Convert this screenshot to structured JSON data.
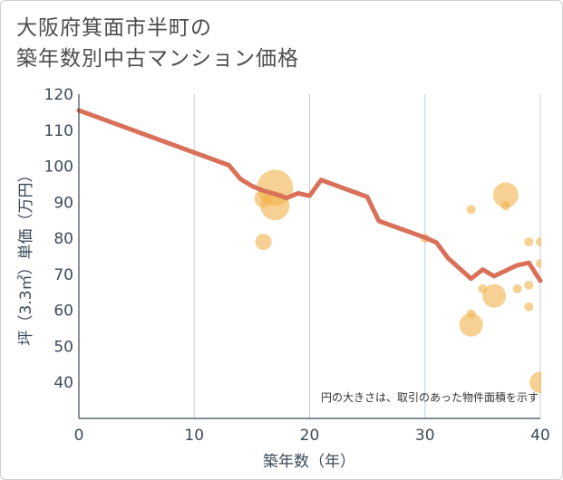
{
  "title_lines": [
    "大阪府箕面市半町の",
    "築年数別中古マンション価格"
  ],
  "chart_data": {
    "type": "scatter",
    "xlabel": "築年数（年）",
    "ylabel": "坪（3.3㎡）単価（万円）",
    "xlim": [
      0,
      40
    ],
    "ylim": [
      30,
      120
    ],
    "x_ticks": [
      0,
      10,
      20,
      30,
      40
    ],
    "y_ticks": [
      40,
      50,
      60,
      70,
      80,
      90,
      100,
      110,
      120
    ],
    "grid": true,
    "annotation": "円の大きさは、取引のあった物件面積を示す",
    "colors": {
      "line": "#d9705a",
      "bubble": "#f2b24d",
      "grid": "#c5d0de",
      "axis": "#3c4a5a"
    },
    "line_series": {
      "x": [
        0,
        13,
        14,
        15,
        16,
        17,
        18,
        19,
        20,
        21,
        25,
        26,
        30,
        31,
        32,
        34,
        35,
        36,
        38,
        39,
        40
      ],
      "y": [
        115.5,
        100.3,
        96.5,
        94.5,
        93.2,
        92.3,
        91.2,
        92.5,
        91.8,
        96.2,
        91.5,
        84.8,
        80.2,
        78.8,
        74.5,
        68.8,
        71.3,
        69.5,
        72.5,
        73.2,
        68.2
      ]
    },
    "bubbles": [
      {
        "x": 16,
        "y": 91,
        "size": 10
      },
      {
        "x": 17,
        "y": 94,
        "size": 20
      },
      {
        "x": 17,
        "y": 89,
        "size": 16
      },
      {
        "x": 16,
        "y": 79,
        "size": 9
      },
      {
        "x": 30,
        "y": 80,
        "size": 5
      },
      {
        "x": 34,
        "y": 88,
        "size": 5
      },
      {
        "x": 37,
        "y": 92,
        "size": 14
      },
      {
        "x": 37,
        "y": 89,
        "size": 5
      },
      {
        "x": 35,
        "y": 66,
        "size": 5
      },
      {
        "x": 36,
        "y": 64,
        "size": 13
      },
      {
        "x": 34,
        "y": 59,
        "size": 5
      },
      {
        "x": 34,
        "y": 56,
        "size": 13
      },
      {
        "x": 38,
        "y": 66,
        "size": 5
      },
      {
        "x": 39,
        "y": 79,
        "size": 5
      },
      {
        "x": 39,
        "y": 67,
        "size": 5
      },
      {
        "x": 39,
        "y": 61,
        "size": 5
      },
      {
        "x": 40,
        "y": 79,
        "size": 5
      },
      {
        "x": 40,
        "y": 73,
        "size": 5
      },
      {
        "x": 40,
        "y": 40,
        "size": 12
      }
    ]
  }
}
